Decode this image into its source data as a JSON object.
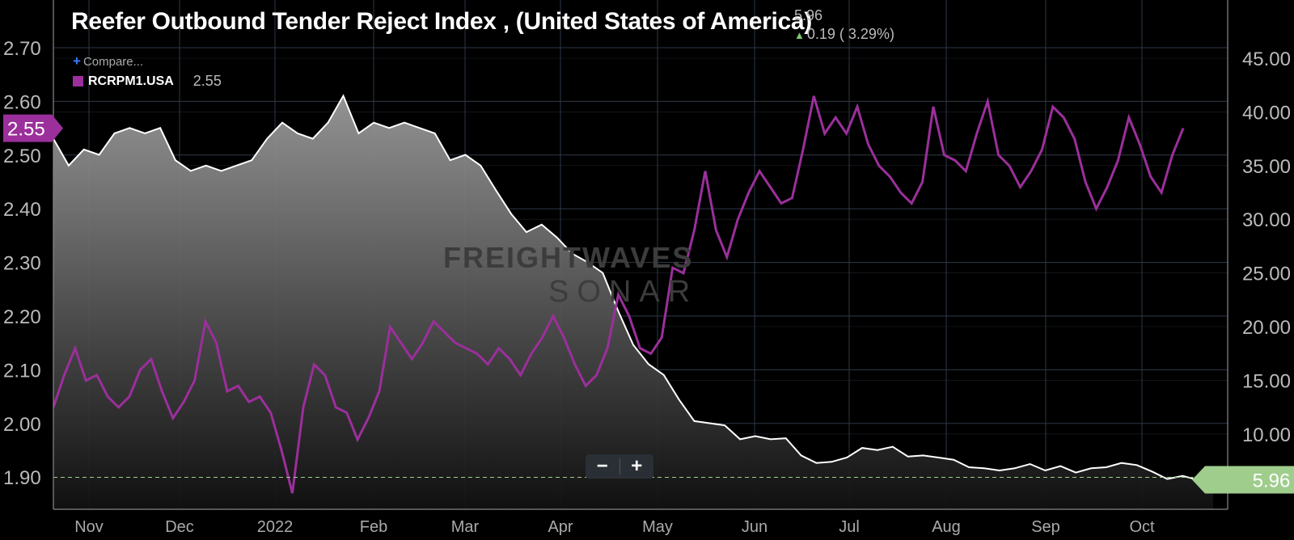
{
  "header": {
    "title": "Reefer Outbound Tender Reject Index , (United States of America)",
    "last_value": "5.96",
    "change": "0.19 ( 3.29%)",
    "compare_label": "Compare...",
    "legend_series": "RCRPM1.USA",
    "legend_value": "2.55"
  },
  "zoom": {
    "minus": "−",
    "plus": "+"
  },
  "watermark": {
    "line1": "FREIGHTWAVES",
    "line2": "SONAR"
  },
  "colors": {
    "white_series": "#ffffff",
    "purple_series": "#9b2f9b",
    "last_tag": "#9fcd8c",
    "grid": "#2e3946"
  },
  "chart_data": {
    "type": "line",
    "x_tick_labels": [
      "Nov",
      "Dec",
      "2022",
      "Feb",
      "Mar",
      "Apr",
      "May",
      "Jun",
      "Jul",
      "Aug",
      "Sep",
      "Oct"
    ],
    "left_axis": {
      "ticks": [
        "1.90",
        "2.00",
        "2.10",
        "2.20",
        "2.30",
        "2.40",
        "2.50",
        "2.60",
        "2.70"
      ],
      "range": [
        1.855,
        2.755
      ]
    },
    "right_axis": {
      "ticks": [
        "10.00",
        "15.00",
        "20.00",
        "25.00",
        "30.00",
        "35.00",
        "40.00",
        "45.00"
      ],
      "range": [
        4.2,
        50
      ]
    },
    "series": [
      {
        "name": "Reefer Outbound Tender Reject Index",
        "axis": "right",
        "last_label": "5.96",
        "values": [
          37.5,
          35,
          36.5,
          36,
          38,
          38.5,
          38,
          38.5,
          35.5,
          34.5,
          35,
          34.5,
          35,
          35.5,
          37.5,
          39,
          38,
          37.5,
          39,
          41.5,
          38,
          39,
          38.5,
          39,
          38.5,
          38,
          35.5,
          36,
          35,
          32.7,
          30.5,
          28.8,
          29.5,
          28.3,
          26.8,
          26,
          25,
          21.5,
          18.3,
          16.5,
          15.5,
          13.2,
          11.2,
          11,
          10.8,
          9.5,
          9.8,
          9.5,
          9.6,
          8,
          7.3,
          7.4,
          7.8,
          8.7,
          8.5,
          8.8,
          7.9,
          8,
          7.8,
          7.6,
          6.9,
          6.8,
          6.6,
          6.8,
          7.2,
          6.6,
          7,
          6.4,
          6.8,
          6.9,
          7.3,
          7.1,
          6.5,
          5.8,
          6.1,
          5.7,
          5.96
        ]
      },
      {
        "name": "RCRPM1.USA",
        "axis": "left",
        "last_label": "2.55",
        "values": [
          2.03,
          2.09,
          2.14,
          2.08,
          2.09,
          2.05,
          2.03,
          2.05,
          2.1,
          2.12,
          2.06,
          2.01,
          2.04,
          2.08,
          2.19,
          2.15,
          2.06,
          2.07,
          2.04,
          2.05,
          2.02,
          1.95,
          1.87,
          2.03,
          2.11,
          2.09,
          2.03,
          2.02,
          1.97,
          2.01,
          2.06,
          2.18,
          2.15,
          2.12,
          2.15,
          2.19,
          2.17,
          2.15,
          2.14,
          2.13,
          2.11,
          2.14,
          2.12,
          2.09,
          2.13,
          2.16,
          2.2,
          2.16,
          2.11,
          2.07,
          2.09,
          2.14,
          2.24,
          2.2,
          2.14,
          2.13,
          2.16,
          2.29,
          2.28,
          2.36,
          2.47,
          2.36,
          2.31,
          2.38,
          2.43,
          2.47,
          2.44,
          2.41,
          2.42,
          2.51,
          2.61,
          2.54,
          2.57,
          2.54,
          2.59,
          2.52,
          2.48,
          2.46,
          2.43,
          2.41,
          2.45,
          2.59,
          2.5,
          2.49,
          2.47,
          2.54,
          2.6,
          2.5,
          2.48,
          2.44,
          2.47,
          2.51,
          2.59,
          2.57,
          2.53,
          2.45,
          2.4,
          2.44,
          2.49,
          2.57,
          2.52,
          2.46,
          2.43,
          2.5,
          2.55
        ]
      }
    ],
    "reference_line": {
      "axis": "right",
      "value": 5.96,
      "style": "dashed"
    },
    "grid": true,
    "legend_position": "top-left"
  }
}
